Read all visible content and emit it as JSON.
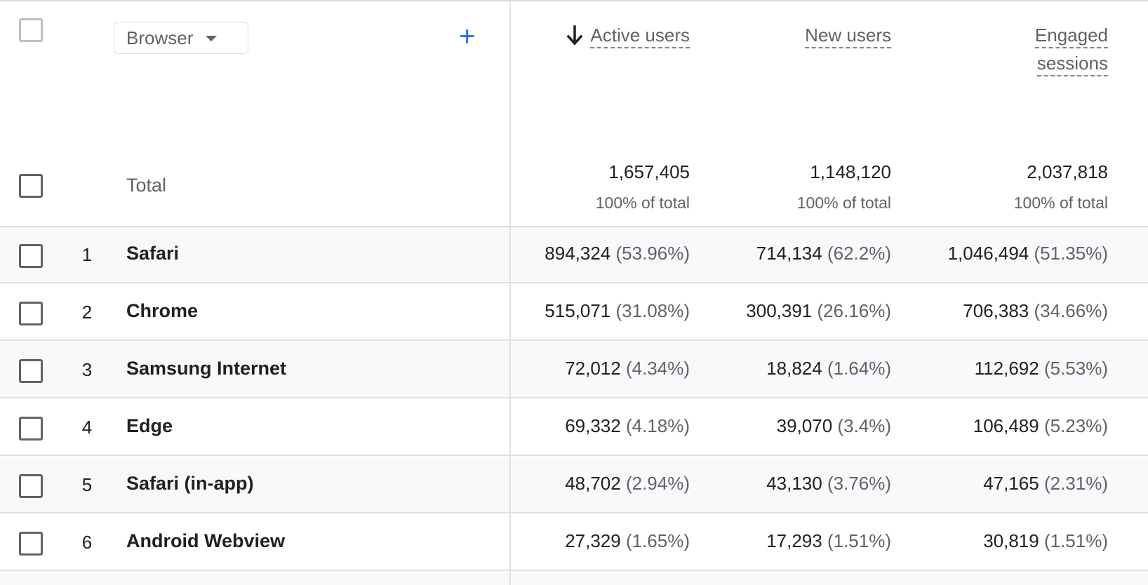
{
  "header": {
    "dimension_label": "Browser",
    "add_label": "+",
    "metrics": [
      {
        "label_line1": "Active users",
        "label_line2": "",
        "sorted": true
      },
      {
        "label_line1": "New users",
        "label_line2": "",
        "sorted": false
      },
      {
        "label_line1": "Engaged",
        "label_line2": "sessions",
        "sorted": false
      }
    ]
  },
  "totals": {
    "label": "Total",
    "values": [
      "1,657,405",
      "1,148,120",
      "2,037,818"
    ],
    "pcts": [
      "100% of total",
      "100% of total",
      "100% of total"
    ]
  },
  "rows": [
    {
      "rank": "1",
      "name": "Safari",
      "v": [
        "894,324",
        "714,134",
        "1,046,494"
      ],
      "p": [
        "(53.96%)",
        "(62.2%)",
        "(51.35%)"
      ]
    },
    {
      "rank": "2",
      "name": "Chrome",
      "v": [
        "515,071",
        "300,391",
        "706,383"
      ],
      "p": [
        "(31.08%)",
        "(26.16%)",
        "(34.66%)"
      ]
    },
    {
      "rank": "3",
      "name": "Samsung Internet",
      "v": [
        "72,012",
        "18,824",
        "112,692"
      ],
      "p": [
        "(4.34%)",
        "(1.64%)",
        "(5.53%)"
      ]
    },
    {
      "rank": "4",
      "name": "Edge",
      "v": [
        "69,332",
        "39,070",
        "106,489"
      ],
      "p": [
        "(4.18%)",
        "(3.4%)",
        "(5.23%)"
      ]
    },
    {
      "rank": "5",
      "name": "Safari (in-app)",
      "v": [
        "48,702",
        "43,130",
        "47,165"
      ],
      "p": [
        "(2.94%)",
        "(3.76%)",
        "(2.31%)"
      ]
    },
    {
      "rank": "6",
      "name": "Android Webview",
      "v": [
        "27,329",
        "17,293",
        "30,819"
      ],
      "p": [
        "(1.65%)",
        "(1.51%)",
        "(1.51%)"
      ]
    }
  ],
  "colors": {
    "accent": "#1a73e8",
    "text": "#202124",
    "muted": "#5f6368",
    "row_shade": "#f8f9fa"
  }
}
